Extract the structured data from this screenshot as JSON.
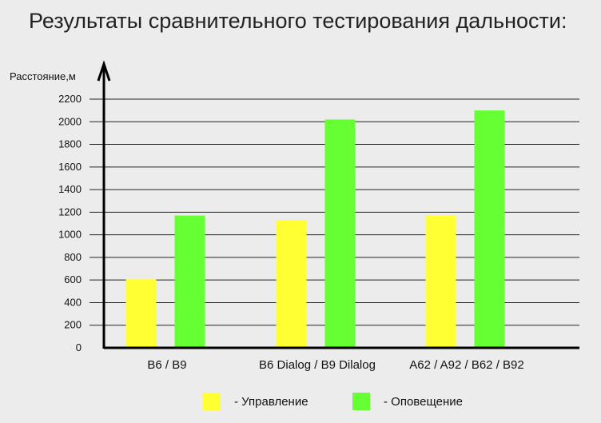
{
  "chart_data": {
    "type": "bar",
    "title": "Результаты сравнительного тестирования дальности:",
    "ylabel": "Расстояние,м",
    "xlabel": "",
    "ylim": [
      0,
      2200
    ],
    "yticks": [
      0,
      200,
      400,
      600,
      800,
      1000,
      1200,
      1400,
      1600,
      1800,
      2000,
      2200
    ],
    "grid": true,
    "legend_position": "bottom",
    "categories": [
      "B6 / B9",
      "B6 Dialog / B9 Dilalog",
      "A62 / A92 / B62 / B92"
    ],
    "series": [
      {
        "name": "- Управление",
        "color": "#ffff33",
        "values": [
          610,
          1130,
          1170
        ]
      },
      {
        "name": "- Оповещение",
        "color": "#66ff33",
        "values": [
          1170,
          2020,
          2100
        ]
      }
    ]
  }
}
